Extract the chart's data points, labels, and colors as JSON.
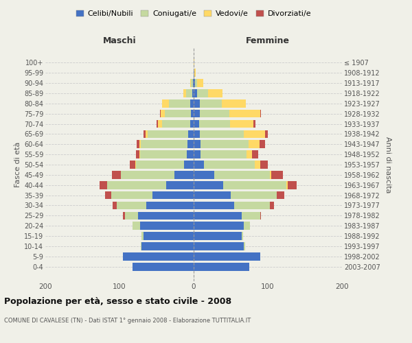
{
  "age_groups": [
    "0-4",
    "5-9",
    "10-14",
    "15-19",
    "20-24",
    "25-29",
    "30-34",
    "35-39",
    "40-44",
    "45-49",
    "50-54",
    "55-59",
    "60-64",
    "65-69",
    "70-74",
    "75-79",
    "80-84",
    "85-89",
    "90-94",
    "95-99",
    "100+"
  ],
  "birth_years": [
    "2003-2007",
    "1998-2002",
    "1993-1997",
    "1988-1992",
    "1983-1987",
    "1978-1982",
    "1973-1977",
    "1968-1972",
    "1963-1967",
    "1958-1962",
    "1953-1957",
    "1948-1952",
    "1943-1947",
    "1938-1942",
    "1933-1937",
    "1928-1932",
    "1923-1927",
    "1918-1922",
    "1913-1917",
    "1908-1912",
    "≤ 1907"
  ],
  "maschi": {
    "celibe": [
      82,
      95,
      70,
      68,
      72,
      75,
      64,
      56,
      37,
      26,
      13,
      9,
      8,
      7,
      5,
      4,
      5,
      2,
      1,
      0,
      0
    ],
    "coniugato": [
      0,
      0,
      1,
      2,
      10,
      18,
      40,
      55,
      80,
      72,
      65,
      63,
      63,
      55,
      38,
      35,
      28,
      8,
      3,
      0,
      0
    ],
    "vedovo": [
      0,
      0,
      0,
      0,
      0,
      0,
      0,
      0,
      0,
      0,
      1,
      1,
      2,
      3,
      5,
      5,
      10,
      4,
      1,
      0,
      0
    ],
    "divorziato": [
      0,
      0,
      0,
      0,
      0,
      2,
      5,
      8,
      10,
      12,
      7,
      5,
      4,
      3,
      2,
      1,
      0,
      0,
      0,
      0,
      0
    ]
  },
  "femmine": {
    "nubile": [
      75,
      90,
      68,
      65,
      68,
      65,
      55,
      50,
      40,
      28,
      14,
      9,
      9,
      8,
      7,
      8,
      8,
      5,
      2,
      1,
      0
    ],
    "coniugata": [
      0,
      0,
      1,
      2,
      8,
      25,
      48,
      62,
      85,
      75,
      68,
      62,
      65,
      60,
      42,
      40,
      30,
      14,
      3,
      0,
      0
    ],
    "vedova": [
      0,
      0,
      0,
      0,
      0,
      0,
      0,
      0,
      2,
      2,
      8,
      8,
      15,
      28,
      32,
      42,
      32,
      20,
      8,
      2,
      1
    ],
    "divorziata": [
      0,
      0,
      0,
      0,
      0,
      1,
      5,
      10,
      12,
      15,
      10,
      8,
      7,
      4,
      2,
      1,
      0,
      0,
      0,
      0,
      0
    ]
  },
  "colors": {
    "celibe": "#4472C4",
    "coniugato": "#C5D9A0",
    "vedovo": "#FFD966",
    "divorziato": "#C0504D"
  },
  "title": "Popolazione per età, sesso e stato civile - 2008",
  "subtitle": "COMUNE DI CAVALESE (TN) - Dati ISTAT 1° gennaio 2008 - Elaborazione TUTTITALIA.IT",
  "xlabel_left": "Maschi",
  "xlabel_right": "Femmine",
  "ylabel_left": "Fasce di età",
  "ylabel_right": "Anni di nascita",
  "xlim": 200,
  "legend_labels": [
    "Celibi/Nubili",
    "Coniugati/e",
    "Vedovi/e",
    "Divorziati/e"
  ],
  "background_color": "#f0f0e8"
}
